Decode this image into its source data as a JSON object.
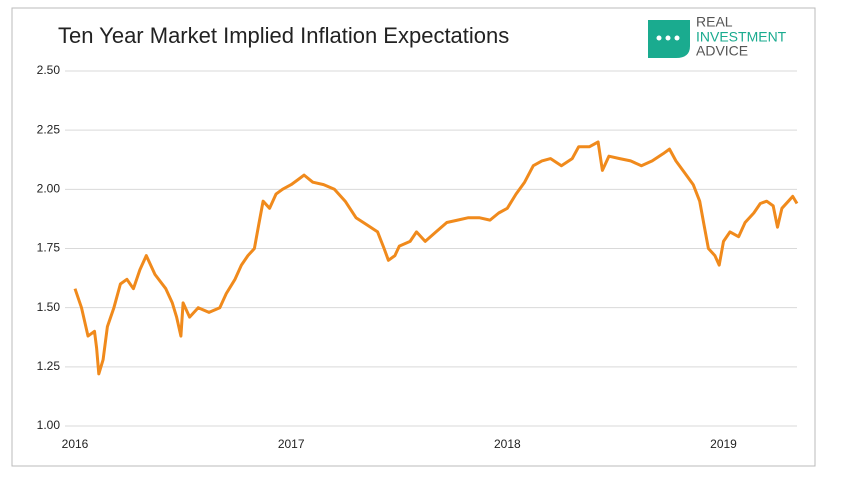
{
  "chart_data": {
    "type": "line",
    "title": "Ten Year Market Implied Inflation Expectations",
    "logo": [
      "REAL",
      "INVESTMENT",
      "ADVICE"
    ],
    "color": "#f08a1c",
    "x": [
      2016.0,
      2016.03,
      2016.06,
      2016.09,
      2016.1,
      2016.11,
      2016.13,
      2016.15,
      2016.18,
      2016.21,
      2016.24,
      2016.27,
      2016.3,
      2016.33,
      2016.37,
      2016.42,
      2016.45,
      2016.47,
      2016.49,
      2016.5,
      2016.53,
      2016.57,
      2016.62,
      2016.67,
      2016.7,
      2016.74,
      2016.77,
      2016.8,
      2016.83,
      2016.85,
      2016.87,
      2016.9,
      2016.93,
      2016.96,
      2017.0,
      2017.03,
      2017.06,
      2017.1,
      2017.15,
      2017.2,
      2017.25,
      2017.3,
      2017.35,
      2017.4,
      2017.43,
      2017.45,
      2017.48,
      2017.5,
      2017.55,
      2017.58,
      2017.62,
      2017.67,
      2017.72,
      2017.77,
      2017.82,
      2017.87,
      2017.92,
      2017.96,
      2018.0,
      2018.04,
      2018.08,
      2018.12,
      2018.16,
      2018.2,
      2018.25,
      2018.3,
      2018.33,
      2018.38,
      2018.42,
      2018.44,
      2018.47,
      2018.52,
      2018.57,
      2018.62,
      2018.67,
      2018.72,
      2018.75,
      2018.78,
      2018.82,
      2018.86,
      2018.89,
      2018.91,
      2018.93,
      2018.96,
      2018.98,
      2019.0,
      2019.03,
      2019.07,
      2019.1,
      2019.14,
      2019.17,
      2019.2,
      2019.23,
      2019.25,
      2019.27,
      2019.3,
      2019.32,
      2019.34
    ],
    "values": [
      1.58,
      1.5,
      1.38,
      1.4,
      1.33,
      1.22,
      1.28,
      1.42,
      1.5,
      1.6,
      1.62,
      1.58,
      1.66,
      1.72,
      1.64,
      1.58,
      1.52,
      1.46,
      1.38,
      1.52,
      1.46,
      1.5,
      1.48,
      1.5,
      1.56,
      1.62,
      1.68,
      1.72,
      1.75,
      1.85,
      1.95,
      1.92,
      1.98,
      2.0,
      2.02,
      2.04,
      2.06,
      2.03,
      2.02,
      2.0,
      1.95,
      1.88,
      1.85,
      1.82,
      1.75,
      1.7,
      1.72,
      1.76,
      1.78,
      1.82,
      1.78,
      1.82,
      1.86,
      1.87,
      1.88,
      1.88,
      1.87,
      1.9,
      1.92,
      1.98,
      2.03,
      2.1,
      2.12,
      2.13,
      2.1,
      2.13,
      2.18,
      2.18,
      2.2,
      2.08,
      2.14,
      2.13,
      2.12,
      2.1,
      2.12,
      2.15,
      2.17,
      2.12,
      2.07,
      2.02,
      1.95,
      1.85,
      1.75,
      1.72,
      1.68,
      1.78,
      1.82,
      1.8,
      1.86,
      1.9,
      1.94,
      1.95,
      1.93,
      1.84,
      1.92,
      1.95,
      1.97,
      1.94
    ],
    "xlim": [
      2016,
      2019.34
    ],
    "xticks": [
      2016,
      2017,
      2018,
      2019
    ],
    "ylim": [
      1.0,
      2.5
    ],
    "yticks": [
      {
        "value": 1.0,
        "label": "1.00"
      },
      1.25,
      {
        "value": 1.5,
        "label": "1.50"
      },
      1.75,
      {
        "value": 2.0,
        "label": "2.00"
      },
      {
        "value": 2.25,
        "label": "2.25"
      },
      {
        "value": 2.5,
        "label": "2.50"
      }
    ],
    "grid": true
  }
}
